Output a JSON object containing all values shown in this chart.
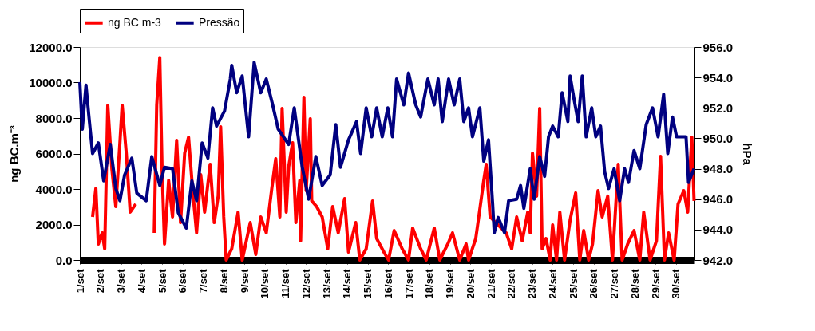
{
  "chart_data": {
    "type": "line",
    "xlim": [
      1,
      30.9
    ],
    "xticks": [
      {
        "value": 1,
        "label": "1/set"
      },
      {
        "value": 2,
        "label": "2/set"
      },
      {
        "value": 3,
        "label": "3/set"
      },
      {
        "value": 4,
        "label": "4/set"
      },
      {
        "value": 5,
        "label": "5/set"
      },
      {
        "value": 6,
        "label": "6/set"
      },
      {
        "value": 7,
        "label": "7/set"
      },
      {
        "value": 8,
        "label": "8/set"
      },
      {
        "value": 9,
        "label": "9/set"
      },
      {
        "value": 10,
        "label": "10/set"
      },
      {
        "value": 11,
        "label": "11/set"
      },
      {
        "value": 12,
        "label": "12/set"
      },
      {
        "value": 13,
        "label": "13/set"
      },
      {
        "value": 14,
        "label": "14/set"
      },
      {
        "value": 15,
        "label": "15/set"
      },
      {
        "value": 16,
        "label": "16/set"
      },
      {
        "value": 17,
        "label": "17/set"
      },
      {
        "value": 18,
        "label": "18/set"
      },
      {
        "value": 19,
        "label": "19/set"
      },
      {
        "value": 20,
        "label": "20/set"
      },
      {
        "value": 21,
        "label": "21/set"
      },
      {
        "value": 22,
        "label": "22/set"
      },
      {
        "value": 23,
        "label": "23/set"
      },
      {
        "value": 24,
        "label": "24/set"
      },
      {
        "value": 25,
        "label": "25/set"
      },
      {
        "value": 26,
        "label": "26/set"
      },
      {
        "value": 27,
        "label": "27/set"
      },
      {
        "value": 28,
        "label": "28/set"
      },
      {
        "value": 29,
        "label": "29/set"
      },
      {
        "value": 30,
        "label": "30/set"
      }
    ],
    "ylabel": "ng BC.m⁻³",
    "y2label": "hPa",
    "ylim": [
      0,
      12000
    ],
    "yticks": [
      {
        "value": 0,
        "label": "0.0"
      },
      {
        "value": 2000,
        "label": "2000.0"
      },
      {
        "value": 4000,
        "label": "4000.0"
      },
      {
        "value": 6000,
        "label": "6000.0"
      },
      {
        "value": 8000,
        "label": "8000.0"
      },
      {
        "value": 10000,
        "label": "10000.0"
      },
      {
        "value": 12000,
        "label": "12000.0"
      }
    ],
    "y2lim": [
      942,
      956
    ],
    "y2ticks": [
      {
        "value": 942,
        "label": "942.0"
      },
      {
        "value": 944,
        "label": "944.0"
      },
      {
        "value": 946,
        "label": "946.0"
      },
      {
        "value": 948,
        "label": "948.0"
      },
      {
        "value": 950,
        "label": "950.0"
      },
      {
        "value": 952,
        "label": "952.0"
      },
      {
        "value": 954,
        "label": "954.0"
      },
      {
        "value": 956,
        "label": "956.0"
      }
    ],
    "legend": "top",
    "grid": false,
    "marker": "none",
    "line_style": "solid",
    "series": [
      {
        "name": "ng BC m-3",
        "color": "#ff0000",
        "x": [
          1.62,
          1.78,
          1.9,
          2.09,
          2.21,
          2.36,
          2.56,
          2.75,
          2.95,
          3.06,
          3.26,
          3.45,
          3.72,
          4.2,
          4.62,
          4.74,
          4.89,
          5.0,
          5.12,
          5.32,
          5.51,
          5.71,
          5.9,
          6.1,
          6.29,
          6.49,
          6.68,
          6.88,
          7.07,
          7.34,
          7.54,
          7.73,
          7.85,
          8.0,
          8.12,
          8.39,
          8.7,
          8.9,
          9.29,
          9.56,
          9.8,
          10.07,
          10.34,
          10.53,
          10.73,
          10.84,
          11.04,
          11.16,
          11.35,
          11.51,
          11.7,
          11.74,
          11.9,
          12.01,
          12.21,
          12.28,
          12.52,
          12.79,
          13.06,
          13.3,
          13.57,
          13.88,
          14.07,
          14.42,
          14.62,
          14.93,
          15.24,
          15.44,
          15.79,
          16.02,
          16.29,
          16.68,
          16.99,
          17.19,
          17.58,
          17.85,
          18.24,
          18.51,
          18.9,
          19.13,
          19.48,
          19.79,
          19.91,
          20.26,
          20.46,
          20.65,
          20.77,
          20.96,
          21.23,
          21.74,
          22.01,
          22.25,
          22.52,
          22.79,
          22.91,
          23.02,
          23.22,
          23.37,
          23.49,
          23.68,
          23.88,
          24.0,
          24.19,
          24.35,
          24.58,
          24.85,
          25.12,
          25.32,
          25.51,
          25.75,
          25.94,
          26.21,
          26.41,
          26.68,
          26.91,
          27.19,
          27.38,
          27.65,
          27.96,
          28.24,
          28.43,
          28.74,
          29.05,
          29.25,
          29.44,
          29.64,
          29.91,
          30.1,
          30.38,
          30.57,
          30.77,
          30.88
        ],
        "values": [
          2430,
          4040,
          900,
          1530,
          630,
          8720,
          5120,
          3010,
          6610,
          8720,
          6020,
          2700,
          3150,
          null,
          1530,
          8720,
          11400,
          5120,
          900,
          4490,
          2430,
          6740,
          2110,
          6020,
          6920,
          3910,
          1530,
          4810,
          2700,
          5390,
          2110,
          3600,
          7510,
          2430,
          0,
          630,
          2700,
          0,
          2110,
          310,
          2430,
          1530,
          4040,
          5710,
          2430,
          8540,
          2700,
          5260,
          6610,
          2110,
          4490,
          1080,
          9170,
          3910,
          7960,
          3330,
          3010,
          2430,
          630,
          3010,
          1530,
          3460,
          450,
          2110,
          0,
          630,
          3330,
          1210,
          450,
          0,
          1660,
          630,
          0,
          1800,
          630,
          0,
          1800,
          0,
          900,
          1530,
          0,
          900,
          0,
          1210,
          2880,
          4490,
          5390,
          2430,
          2110,
          1530,
          630,
          2430,
          1080,
          2700,
          1530,
          6020,
          3600,
          8540,
          630,
          1210,
          0,
          1980,
          0,
          2700,
          0,
          2250,
          3780,
          0,
          1660,
          0,
          900,
          3910,
          2430,
          3600,
          0,
          5390,
          0,
          900,
          1660,
          0,
          2700,
          0,
          1080,
          5840,
          0,
          1530,
          0,
          3150,
          3910,
          2700,
          6920,
          3330
        ]
      },
      {
        "name": "Pressão",
        "color": "#000080",
        "axis": "y2",
        "x": [
          1.0,
          1.12,
          1.3,
          1.43,
          1.62,
          1.9,
          2.16,
          2.48,
          2.75,
          2.95,
          3.18,
          3.53,
          3.77,
          4.23,
          4.5,
          4.89,
          5.12,
          5.51,
          5.79,
          6.18,
          6.45,
          6.68,
          6.95,
          7.23,
          7.46,
          7.65,
          8.04,
          8.32,
          8.39,
          8.63,
          8.9,
          9.21,
          9.48,
          9.8,
          10.07,
          10.38,
          10.65,
          11.16,
          11.43,
          11.82,
          12.13,
          12.48,
          12.79,
          13.18,
          13.45,
          13.68,
          14.07,
          14.46,
          14.66,
          14.93,
          15.2,
          15.44,
          15.71,
          15.98,
          16.21,
          16.41,
          16.76,
          16.99,
          17.34,
          17.58,
          17.93,
          18.24,
          18.43,
          18.63,
          18.94,
          19.21,
          19.48,
          19.68,
          19.91,
          20.1,
          20.46,
          20.65,
          20.88,
          21.08,
          21.16,
          21.35,
          21.66,
          21.86,
          22.25,
          22.44,
          22.6,
          22.91,
          23.1,
          23.37,
          23.61,
          23.8,
          24.0,
          24.27,
          24.46,
          24.74,
          24.85,
          25.05,
          25.24,
          25.44,
          25.63,
          25.9,
          26.1,
          26.33,
          26.53,
          26.72,
          26.99,
          27.26,
          27.5,
          27.69,
          27.96,
          28.24,
          28.55,
          28.86,
          29.13,
          29.4,
          29.6,
          29.83,
          30.03,
          30.49,
          30.61,
          30.88
        ],
        "values": [
          953.7,
          950.6,
          953.5,
          951.6,
          949.0,
          949.7,
          947.2,
          949.6,
          946.7,
          945.9,
          947.6,
          948.7,
          946.4,
          945.9,
          948.8,
          946.9,
          948.1,
          948.0,
          945.1,
          944.1,
          947.2,
          945.9,
          949.7,
          948.7,
          952.0,
          950.8,
          951.8,
          953.9,
          954.8,
          953.0,
          954.1,
          950.1,
          955.0,
          953.0,
          953.9,
          952.2,
          950.6,
          949.6,
          952.0,
          948.1,
          946.0,
          948.8,
          946.9,
          947.6,
          950.9,
          948.1,
          949.9,
          951.1,
          949.0,
          952.0,
          950.1,
          952.0,
          950.1,
          952.0,
          950.1,
          953.9,
          952.2,
          954.3,
          952.2,
          951.4,
          953.9,
          952.2,
          953.9,
          951.1,
          953.9,
          952.2,
          953.9,
          951.1,
          952.0,
          950.1,
          952.0,
          948.5,
          949.9,
          945.7,
          943.8,
          944.8,
          943.8,
          945.9,
          946.0,
          946.9,
          945.4,
          948.0,
          946.0,
          948.8,
          947.5,
          950.1,
          950.8,
          950.1,
          953.0,
          951.1,
          954.1,
          952.5,
          951.1,
          954.1,
          950.1,
          952.0,
          950.1,
          950.8,
          947.8,
          946.7,
          948.0,
          945.9,
          948.0,
          947.1,
          949.2,
          948.0,
          950.9,
          952.0,
          950.1,
          952.9,
          949.0,
          951.4,
          950.1,
          950.1,
          947.1,
          948.0
        ]
      }
    ]
  }
}
